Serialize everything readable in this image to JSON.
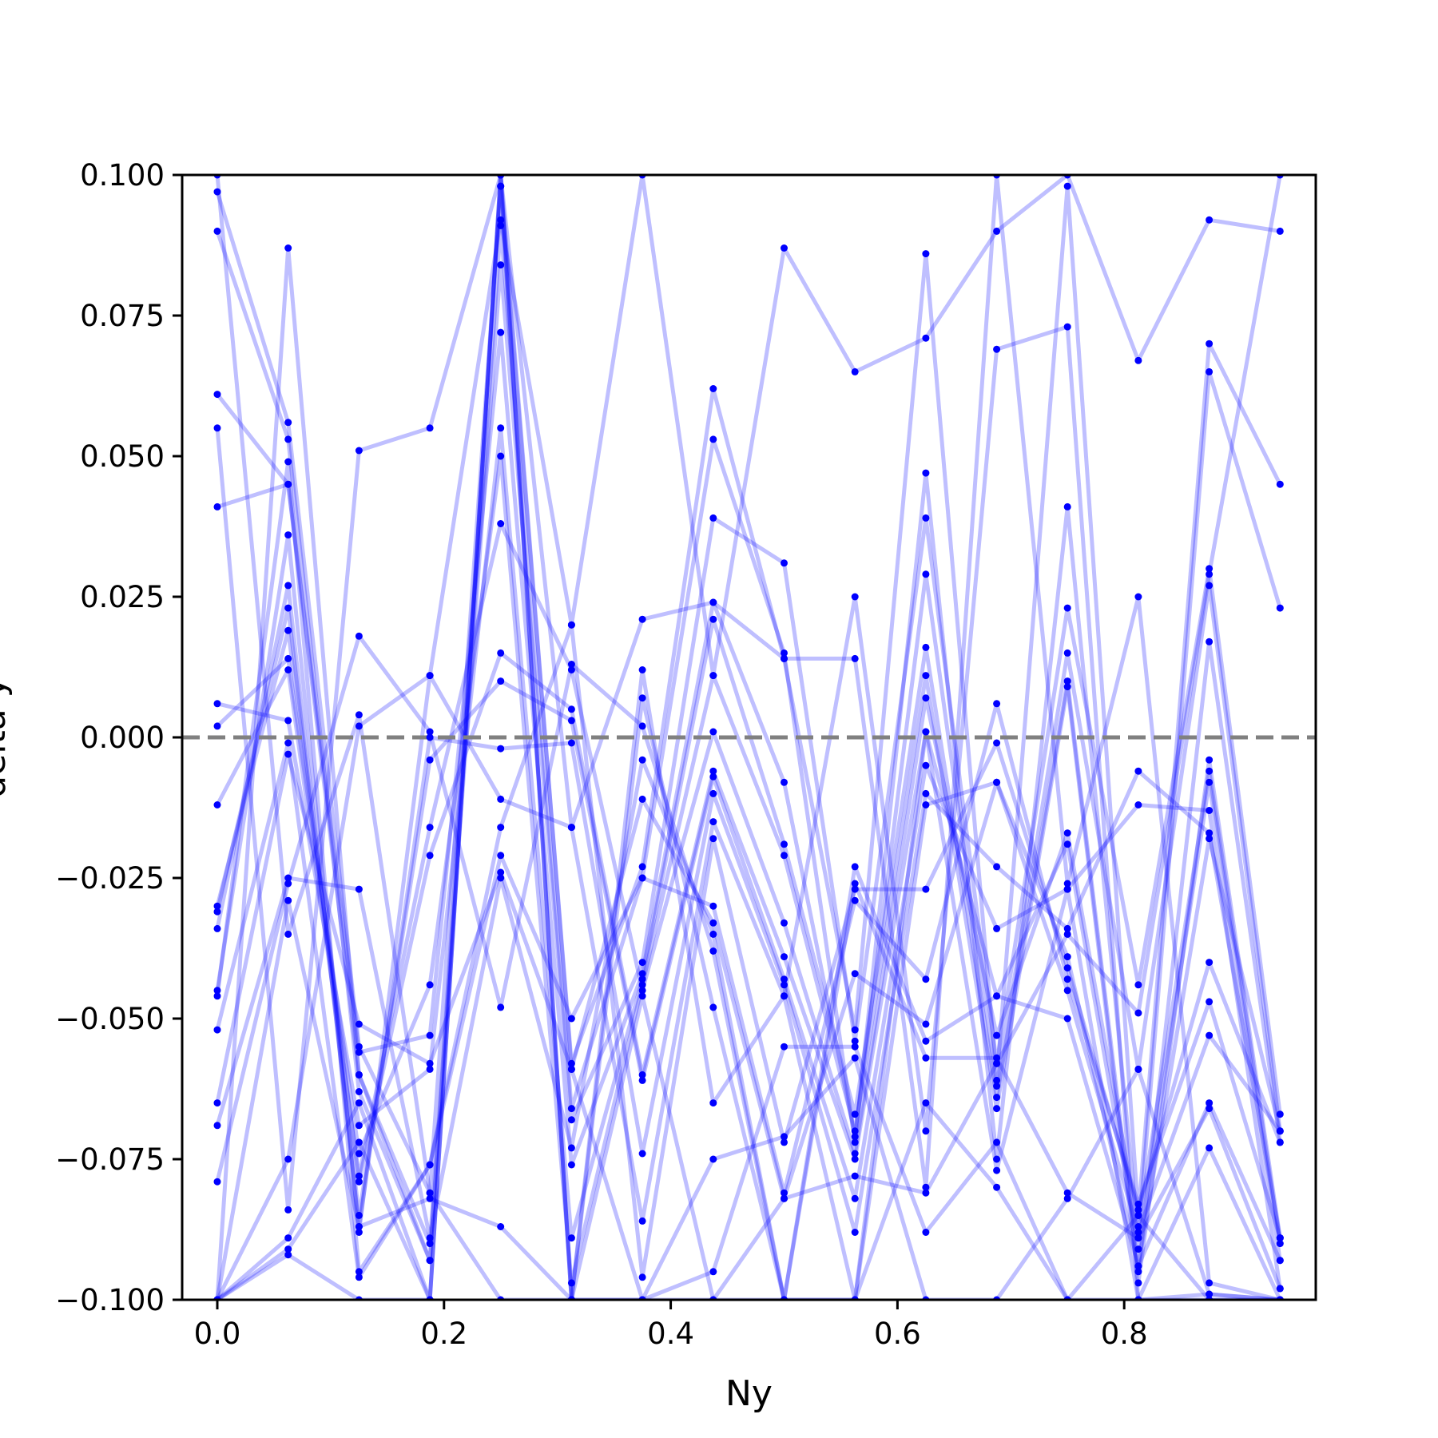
{
  "chart_data": {
    "type": "line",
    "title": "",
    "xlabel": "Ny",
    "ylabel": "delta y",
    "xlim": [
      -0.031,
      0.969
    ],
    "ylim": [
      -0.1,
      0.1
    ],
    "x_ticks": [
      0.0,
      0.2,
      0.4,
      0.6,
      0.8
    ],
    "x_tick_labels": [
      "0.0",
      "0.2",
      "0.4",
      "0.6",
      "0.8"
    ],
    "y_ticks": [
      0.1,
      0.075,
      0.05,
      0.025,
      0.0,
      -0.025,
      -0.05,
      -0.075,
      -0.1
    ],
    "y_tick_labels": [
      "0.100",
      "0.075",
      "0.050",
      "0.025",
      "0.000",
      "−0.025",
      "−0.050",
      "−0.075",
      "−0.100"
    ],
    "reference_line": {
      "y": 0.0,
      "style": "dashed",
      "color": "#808080"
    },
    "line_color": "#0000ff",
    "line_alpha": 0.25,
    "marker_color": "#0000ff",
    "grid": false,
    "x": [
      0.0,
      0.0625,
      0.125,
      0.1875,
      0.25,
      0.3125,
      0.375,
      0.4375,
      0.5,
      0.5625,
      0.625,
      0.6875,
      0.75,
      0.8125,
      0.875,
      0.9375
    ],
    "series": [
      {
        "values": [
          0.097,
          0.056,
          -0.055,
          -0.081,
          0.098,
          -0.058,
          -0.023,
          0.062,
          0.014,
          -0.052,
          0.086,
          -0.061,
          0.098,
          -0.085,
          0.07,
          0.045
        ]
      },
      {
        "values": [
          0.09,
          0.053,
          -0.063,
          -0.093,
          0.091,
          -0.066,
          -0.025,
          0.053,
          0.015,
          -0.072,
          0.047,
          -0.075,
          0.041,
          -0.089,
          0.065,
          0.023
        ]
      },
      {
        "values": [
          0.061,
          0.045,
          -0.06,
          -0.09,
          0.084,
          -0.068,
          -0.04,
          0.039,
          0.031,
          -0.054,
          0.039,
          -0.058,
          0.023,
          -0.044,
          0.03,
          -0.067
        ]
      },
      {
        "values": [
          0.041,
          0.045,
          -0.056,
          -0.053,
          0.072,
          -0.076,
          -0.042,
          0.024,
          -0.008,
          -0.071,
          0.029,
          -0.062,
          0.015,
          -0.059,
          0.027,
          -0.07
        ]
      },
      {
        "values": [
          0.006,
          0.003,
          -0.069,
          -0.059,
          0.055,
          -0.089,
          -0.043,
          0.021,
          -0.019,
          -0.067,
          0.016,
          -0.064,
          0.01,
          -0.095,
          0.017,
          -0.072
        ]
      },
      {
        "values": [
          0.002,
          0.014,
          -0.074,
          -0.044,
          0.05,
          -0.097,
          -0.044,
          0.011,
          -0.021,
          -0.07,
          0.011,
          -0.066,
          0.009,
          -0.097,
          -0.004,
          -0.089
        ]
      },
      {
        "values": [
          -0.012,
          0.012,
          -0.078,
          -0.016,
          0.038,
          0.012,
          -0.045,
          0.001,
          -0.033,
          -0.074,
          0.007,
          -0.053,
          -0.017,
          -0.087,
          -0.006,
          -0.09
        ]
      },
      {
        "values": [
          -0.03,
          0.019,
          -0.079,
          -0.021,
          0.015,
          0.005,
          -0.06,
          -0.006,
          -0.039,
          -0.075,
          0.001,
          -0.046,
          -0.019,
          -0.091,
          -0.008,
          -0.093
        ]
      },
      {
        "values": [
          -0.031,
          0.023,
          -0.085,
          -0.004,
          0.01,
          0.003,
          -0.061,
          -0.007,
          -0.043,
          -0.082,
          -0.005,
          -0.034,
          -0.027,
          -0.012,
          -0.013,
          -0.098
        ]
      },
      {
        "values": [
          -0.034,
          0.027,
          -0.087,
          0.0,
          -0.002,
          -0.001,
          -0.074,
          -0.01,
          -0.044,
          -0.088,
          -0.01,
          -0.023,
          -0.034,
          -0.006,
          -0.017,
          -0.089
        ]
      },
      {
        "values": [
          -0.045,
          0.036,
          -0.088,
          0.011,
          -0.011,
          -0.016,
          -0.086,
          -0.015,
          -0.046,
          -0.1,
          -0.012,
          -0.008,
          -0.039,
          -0.094,
          -0.018,
          -0.07
        ]
      },
      {
        "values": [
          -0.046,
          0.049,
          -0.095,
          -0.076,
          -0.016,
          0.02,
          -0.096,
          -0.018,
          -0.072,
          -0.027,
          -0.027,
          -0.001,
          -0.041,
          -0.084,
          -0.04,
          -0.072
        ]
      },
      {
        "values": [
          -0.052,
          -0.001,
          -0.096,
          -0.076,
          -0.021,
          -0.05,
          -0.025,
          -0.03,
          -0.081,
          -0.029,
          -0.043,
          0.006,
          -0.043,
          -0.083,
          -0.047,
          -0.089
        ]
      },
      {
        "values": [
          -0.065,
          -0.003,
          -0.051,
          -0.058,
          -0.024,
          -0.059,
          -0.011,
          -0.033,
          -0.082,
          -0.042,
          -0.051,
          -0.008,
          -0.045,
          -0.088,
          -0.053,
          -0.07
        ]
      },
      {
        "values": [
          -0.069,
          -0.025,
          -0.027,
          -0.089,
          -0.025,
          -0.073,
          -0.004,
          -0.035,
          -0.1,
          -0.023,
          -0.054,
          -0.046,
          -0.05,
          -0.094,
          -0.065,
          -0.093
        ]
      },
      {
        "values": [
          -0.079,
          -0.026,
          0.018,
          0.001,
          -0.048,
          0.013,
          0.002,
          -0.038,
          -0.1,
          -0.026,
          -0.057,
          -0.057,
          -0.081,
          -0.089,
          -0.066,
          -0.098
        ]
      },
      {
        "values": [
          -0.1,
          -0.029,
          -0.087,
          -0.082,
          -0.087,
          -0.1,
          0.007,
          -0.048,
          -0.1,
          -0.1,
          -0.065,
          -0.08,
          -0.1,
          -0.1,
          -0.073,
          -0.1
        ]
      },
      {
        "values": [
          0.1,
          -0.035,
          0.004,
          -0.081,
          -0.1,
          -0.1,
          0.012,
          -0.065,
          -0.046,
          0.025,
          -0.07,
          0.069,
          0.073,
          -0.1,
          -0.099,
          -0.1
        ]
      },
      {
        "values": [
          -0.1,
          -0.075,
          0.002,
          0.011,
          0.092,
          0.02,
          0.1,
          0.011,
          0.087,
          0.065,
          0.071,
          0.09,
          0.1,
          0.067,
          0.092,
          0.09
        ]
      },
      {
        "values": [
          0.055,
          -0.084,
          0.051,
          0.055,
          0.1,
          -0.016,
          0.021,
          0.024,
          0.014,
          0.014,
          -0.08,
          0.1,
          -0.026,
          0.025,
          -0.097,
          -0.1
        ]
      },
      {
        "values": [
          -0.1,
          0.087,
          -0.06,
          -0.093,
          0.098,
          -0.1,
          -0.1,
          -0.095,
          -0.055,
          -0.055,
          -0.088,
          -0.072,
          -0.1,
          -0.085,
          -0.1,
          -0.1
        ]
      },
      {
        "values": [
          -0.1,
          -0.089,
          -0.065,
          -0.1,
          0.1,
          -0.059,
          -0.1,
          -0.075,
          -0.071,
          -0.057,
          -0.1,
          -0.1,
          -0.082,
          -0.059,
          -0.099,
          -0.1
        ]
      },
      {
        "values": [
          -0.1,
          -0.091,
          -0.072,
          -0.1,
          0.1,
          -0.1,
          -0.1,
          -0.1,
          -0.082,
          -0.078,
          -0.081,
          -0.058,
          -0.035,
          -0.049,
          0.029,
          0.1
        ]
      },
      {
        "values": [
          -0.1,
          -0.092,
          -0.1,
          -0.1,
          0.1,
          -0.1,
          -0.046,
          -0.1,
          -0.1,
          -0.1,
          0.001,
          -0.077,
          -0.027,
          -0.1,
          -0.1,
          -0.1
        ]
      }
    ]
  }
}
